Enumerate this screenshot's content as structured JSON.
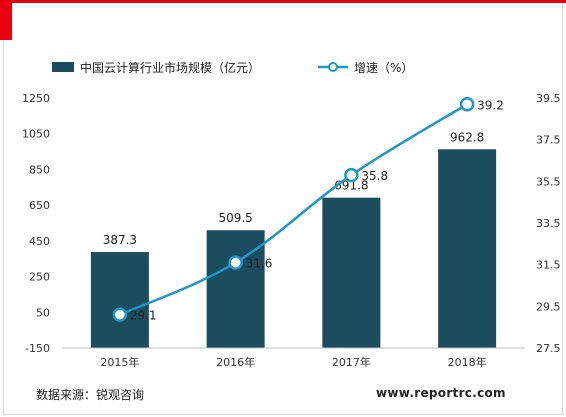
{
  "chart_data": {
    "type": "bar+line",
    "categories": [
      "2015年",
      "2016年",
      "2017年",
      "2018年"
    ],
    "series": [
      {
        "name": "中国云计算行业市场规模（亿元）",
        "type": "bar",
        "axis": "left",
        "values": [
          387.3,
          509.5,
          691.8,
          962.8
        ],
        "labels": [
          "387.3",
          "509.5",
          "691.8",
          "962.8"
        ],
        "color": "#1b4d5f"
      },
      {
        "name": "增速（%）",
        "type": "line",
        "axis": "right",
        "values": [
          29.1,
          31.6,
          35.8,
          39.2
        ],
        "labels": [
          "29.1",
          "31.6",
          "35.8",
          "39.2"
        ],
        "color": "#2196c8"
      }
    ],
    "y_left": {
      "min": -150,
      "max": 1250,
      "ticks": [
        "1250",
        "1050",
        "850",
        "650",
        "450",
        "250",
        "50",
        "-150"
      ]
    },
    "y_right": {
      "min": 27.5,
      "max": 39.5,
      "ticks": [
        "39.5",
        "37.5",
        "35.5",
        "33.5",
        "31.5",
        "29.5",
        "27.5"
      ]
    },
    "legend_position": "top-left",
    "grid": false
  },
  "footer": {
    "source": "数据来源：锐观咨询",
    "url": "www.reportrc.com"
  }
}
